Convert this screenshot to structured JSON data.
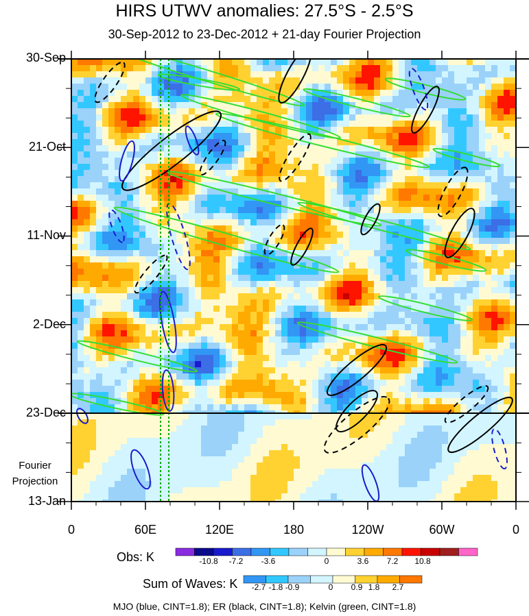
{
  "chart_data": {
    "type": "heatmap",
    "title": "HIRS UTWV anomalies: 27.5°S - 2.5°S",
    "subtitle": "30-Sep-2012 to 23-Dec-2012 + 21-day Fourier Projection",
    "x_ticks": [
      "0",
      "60E",
      "120E",
      "180",
      "120W",
      "60W",
      "0"
    ],
    "y_ticks": [
      "30-Sep",
      "21-Oct",
      "11-Nov",
      "2-Dec",
      "23-Dec",
      "13-Jan"
    ],
    "projection_label": [
      "Fourier",
      "Projection"
    ],
    "obs_colorbar": {
      "label": "Obs: K",
      "colors": [
        "#8a2be2",
        "#0a0a8c",
        "#1a1acd",
        "#3c6ee6",
        "#3296f5",
        "#32c8ff",
        "#9bd2fa",
        "#d2f5ff",
        "#fffad2",
        "#ffd232",
        "#ffaa00",
        "#ff7800",
        "#ff1400",
        "#c80000",
        "#a01e1e",
        "#ff64c8"
      ],
      "tick_labels": [
        "-10.8",
        "-7.2",
        "-3.6",
        "0",
        "3.6",
        "7.2",
        "10.8"
      ]
    },
    "waves_colorbar": {
      "label": "Sum of Waves: K",
      "colors": [
        "#3296f5",
        "#32c8ff",
        "#9bd2fa",
        "#d2f5ff",
        "#fffad2",
        "#ffd232",
        "#ffaa00",
        "#ff7800"
      ],
      "tick_labels": [
        "-2.7",
        "-1.8",
        "-0.9",
        "0",
        "0.9",
        "1.8",
        "2.7"
      ]
    },
    "footnote": "MJO (blue, CINT=1.8); ER (black, CINT=1.8); Kelvin (green, CINT=1.8)"
  }
}
